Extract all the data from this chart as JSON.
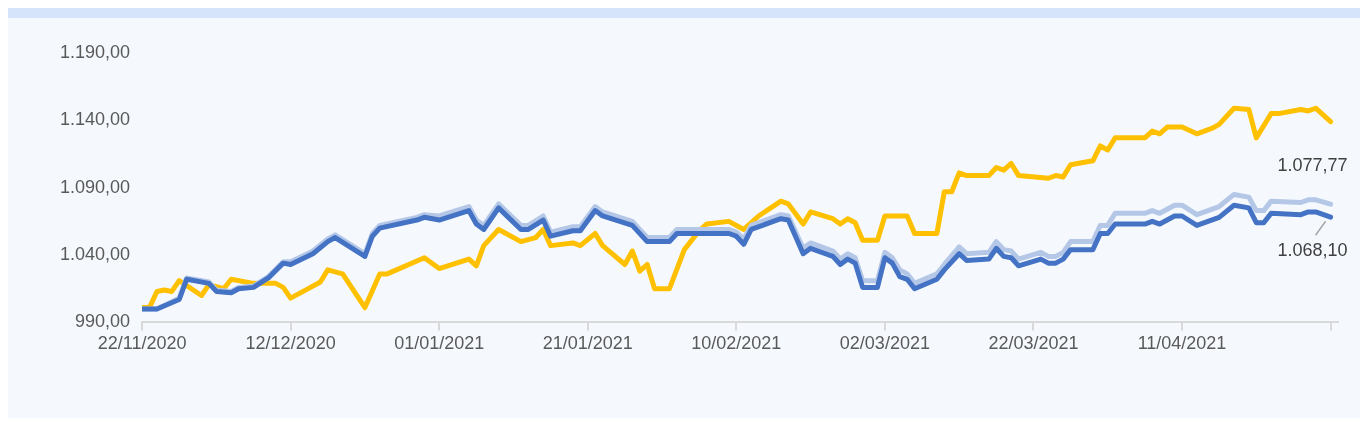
{
  "chart_data": {
    "type": "line",
    "x": [
      "2020-11-22",
      "2020-11-24",
      "2020-11-27",
      "2020-11-28",
      "2020-12-01",
      "2020-12-02",
      "2020-12-04",
      "2020-12-05",
      "2020-12-07",
      "2020-12-09",
      "2020-12-11",
      "2020-12-12",
      "2020-12-15",
      "2020-12-17",
      "2020-12-18",
      "2020-12-22",
      "2020-12-23",
      "2020-12-24",
      "2020-12-29",
      "2020-12-30",
      "2021-01-01",
      "2021-01-05",
      "2021-01-06",
      "2021-01-07",
      "2021-01-09",
      "2021-01-12",
      "2021-01-13",
      "2021-01-15",
      "2021-01-16",
      "2021-01-19",
      "2021-01-20",
      "2021-01-22",
      "2021-01-23",
      "2021-01-27",
      "2021-01-29",
      "2021-02-01",
      "2021-02-02",
      "2021-02-05",
      "2021-02-09",
      "2021-02-10",
      "2021-02-11",
      "2021-02-12",
      "2021-02-16",
      "2021-02-17",
      "2021-02-19",
      "2021-02-20",
      "2021-02-23",
      "2021-02-24",
      "2021-02-25",
      "2021-02-26",
      "2021-02-27",
      "2021-03-01",
      "2021-03-02",
      "2021-03-03",
      "2021-03-04",
      "2021-03-05",
      "2021-03-06",
      "2021-03-09",
      "2021-03-10",
      "2021-03-12",
      "2021-03-13",
      "2021-03-16",
      "2021-03-17",
      "2021-03-18",
      "2021-03-19",
      "2021-03-20",
      "2021-03-23",
      "2021-03-24",
      "2021-03-25",
      "2021-03-26",
      "2021-03-27",
      "2021-03-30",
      "2021-03-31",
      "2021-04-01",
      "2021-04-02",
      "2021-04-06",
      "2021-04-07",
      "2021-04-08",
      "2021-04-10",
      "2021-04-11",
      "2021-04-13",
      "2021-04-16",
      "2021-04-18",
      "2021-04-20",
      "2021-04-21",
      "2021-04-22",
      "2021-04-23",
      "2021-04-27",
      "2021-04-28",
      "2021-04-29",
      "2021-05-01"
    ],
    "series": [
      {
        "color": "#4472c4",
        "values": [
          1000,
          1000,
          1007,
          1022,
          1019,
          1013,
          1012,
          1015,
          1016,
          1023,
          1034,
          1033,
          1041,
          1050,
          1053,
          1039,
          1054,
          1060,
          1066,
          1068,
          1066,
          1073,
          1063,
          1059,
          1075,
          1059,
          1059,
          1066,
          1054,
          1058,
          1058,
          1073,
          1069,
          1062,
          1050,
          1050,
          1056,
          1056,
          1056,
          1054,
          1048,
          1059,
          1067,
          1066,
          1041,
          1045,
          1039,
          1033,
          1037,
          1034,
          1016,
          1016,
          1038,
          1034,
          1024,
          1022,
          1015,
          1022,
          1029,
          1041,
          1036,
          1037,
          1045,
          1039,
          1038,
          1032,
          1037,
          1034,
          1034,
          1037,
          1044,
          1044,
          1056,
          1056,
          1063,
          1063,
          1065,
          1063,
          1069,
          1069,
          1062,
          1068,
          1077,
          1075,
          1064,
          1064,
          1071,
          1070,
          1072,
          1072,
          1068.1
        ]
      },
      {
        "color": "#b4c7e7",
        "values": [
          1000,
          1000,
          1008,
          1023,
          1020,
          1014,
          1013,
          1016,
          1017,
          1024,
          1035,
          1035,
          1043,
          1052,
          1055,
          1041,
          1056,
          1062,
          1068,
          1070,
          1069,
          1076,
          1066,
          1062,
          1078,
          1062,
          1062,
          1069,
          1057,
          1061,
          1061,
          1076,
          1072,
          1065,
          1053,
          1053,
          1059,
          1059,
          1059,
          1057,
          1052,
          1062,
          1070,
          1069,
          1045,
          1049,
          1043,
          1037,
          1041,
          1038,
          1021,
          1021,
          1042,
          1038,
          1029,
          1026,
          1019,
          1026,
          1033,
          1046,
          1041,
          1042,
          1050,
          1044,
          1043,
          1037,
          1042,
          1039,
          1039,
          1042,
          1050,
          1050,
          1062,
          1062,
          1071,
          1071,
          1073,
          1071,
          1077,
          1077,
          1070,
          1076,
          1085,
          1083,
          1073,
          1073,
          1080,
          1079,
          1081,
          1081,
          1077.77
        ]
      },
      {
        "color": "#ffc000",
        "x": [
          "2020-11-22",
          "2020-11-23",
          "2020-11-24",
          "2020-11-25",
          "2020-11-26",
          "2020-11-27",
          "2020-11-30",
          "2020-12-01",
          "2020-12-03",
          "2020-12-04",
          "2020-12-07",
          "2020-12-10",
          "2020-12-11",
          "2020-12-12",
          "2020-12-14",
          "2020-12-16",
          "2020-12-17",
          "2020-12-19",
          "2020-12-22",
          "2020-12-24",
          "2020-12-25",
          "2020-12-30",
          "2021-01-01",
          "2021-01-05",
          "2021-01-06",
          "2021-01-07",
          "2021-01-09",
          "2021-01-12",
          "2021-01-14",
          "2021-01-15",
          "2021-01-16",
          "2021-01-19",
          "2021-01-20",
          "2021-01-22",
          "2021-01-23",
          "2021-01-26",
          "2021-01-27",
          "2021-01-28",
          "2021-01-29",
          "2021-01-30",
          "2021-02-01",
          "2021-02-03",
          "2021-02-05",
          "2021-02-06",
          "2021-02-09",
          "2021-02-11",
          "2021-02-13",
          "2021-02-16",
          "2021-02-17",
          "2021-02-19",
          "2021-02-20",
          "2021-02-23",
          "2021-02-24",
          "2021-02-25",
          "2021-02-26",
          "2021-02-27",
          "2021-03-01",
          "2021-03-02",
          "2021-03-05",
          "2021-03-06",
          "2021-03-09",
          "2021-03-10",
          "2021-03-11",
          "2021-03-12",
          "2021-03-13",
          "2021-03-16",
          "2021-03-17",
          "2021-03-18",
          "2021-03-19",
          "2021-03-20",
          "2021-03-24",
          "2021-03-25",
          "2021-03-26",
          "2021-03-27",
          "2021-03-30",
          "2021-03-31",
          "2021-04-01",
          "2021-04-02",
          "2021-04-06",
          "2021-04-07",
          "2021-04-08",
          "2021-04-09",
          "2021-04-11",
          "2021-04-13",
          "2021-04-15",
          "2021-04-16",
          "2021-04-18",
          "2021-04-20",
          "2021-04-21",
          "2021-04-23",
          "2021-04-24",
          "2021-04-27",
          "2021-04-28",
          "2021-04-29",
          "2021-05-01"
        ],
        "values": [
          1001,
          1001,
          1013,
          1014,
          1013,
          1021,
          1010,
          1018,
          1015,
          1022,
          1019,
          1019,
          1016,
          1008,
          1014,
          1020,
          1029,
          1026,
          1001,
          1026,
          1026,
          1038,
          1030,
          1037,
          1032,
          1047,
          1059,
          1050,
          1053,
          1059,
          1047,
          1049,
          1047,
          1056,
          1047,
          1033,
          1043,
          1028,
          1033,
          1015,
          1015,
          1044,
          1058,
          1063,
          1065,
          1059,
          1069,
          1080,
          1078,
          1063,
          1072,
          1067,
          1063,
          1067,
          1064,
          1051,
          1051,
          1069,
          1069,
          1056,
          1056,
          1087,
          1087,
          1101,
          1099,
          1099,
          1105,
          1103,
          1108,
          1099,
          1097,
          1099,
          1098,
          1107,
          1110,
          1121,
          1118,
          1127,
          1127,
          1132,
          1130,
          1135,
          1135,
          1130,
          1134,
          1137,
          1149,
          1148,
          1127,
          1145,
          1145,
          1148,
          1147,
          1149,
          1139
        ]
      }
    ],
    "xlim": [
      "2020-11-22",
      "2021-05-02"
    ],
    "xticks": [
      {
        "value": "2020-11-22",
        "label": "22/11/2020"
      },
      {
        "value": "2020-12-12",
        "label": "12/12/2020"
      },
      {
        "value": "2021-01-01",
        "label": "01/01/2021"
      },
      {
        "value": "2021-01-21",
        "label": "21/01/2021"
      },
      {
        "value": "2021-02-10",
        "label": "10/02/2021"
      },
      {
        "value": "2021-03-02",
        "label": "02/03/2021"
      },
      {
        "value": "2021-03-22",
        "label": "22/03/2021"
      },
      {
        "value": "2021-04-11",
        "label": "11/04/2021"
      },
      {
        "value": "2021-05-01",
        "label": null
      }
    ],
    "ylim": [
      990,
      1190
    ],
    "yticks": [
      {
        "value": 990,
        "label": "990,00"
      },
      {
        "value": 1040,
        "label": "1.040,00"
      },
      {
        "value": 1090,
        "label": "1.090,00"
      },
      {
        "value": 1140,
        "label": "1.140,00"
      },
      {
        "value": 1190,
        "label": "1.190,00"
      }
    ],
    "annotations": [
      {
        "text": "1.077,77",
        "x": "2021-05-01",
        "y": 1077.77
      },
      {
        "text": "1.068,10",
        "x": "2021-05-01",
        "y": 1068.1
      }
    ],
    "grid": false,
    "legend": false,
    "marker": "none",
    "line_style": "solid"
  }
}
